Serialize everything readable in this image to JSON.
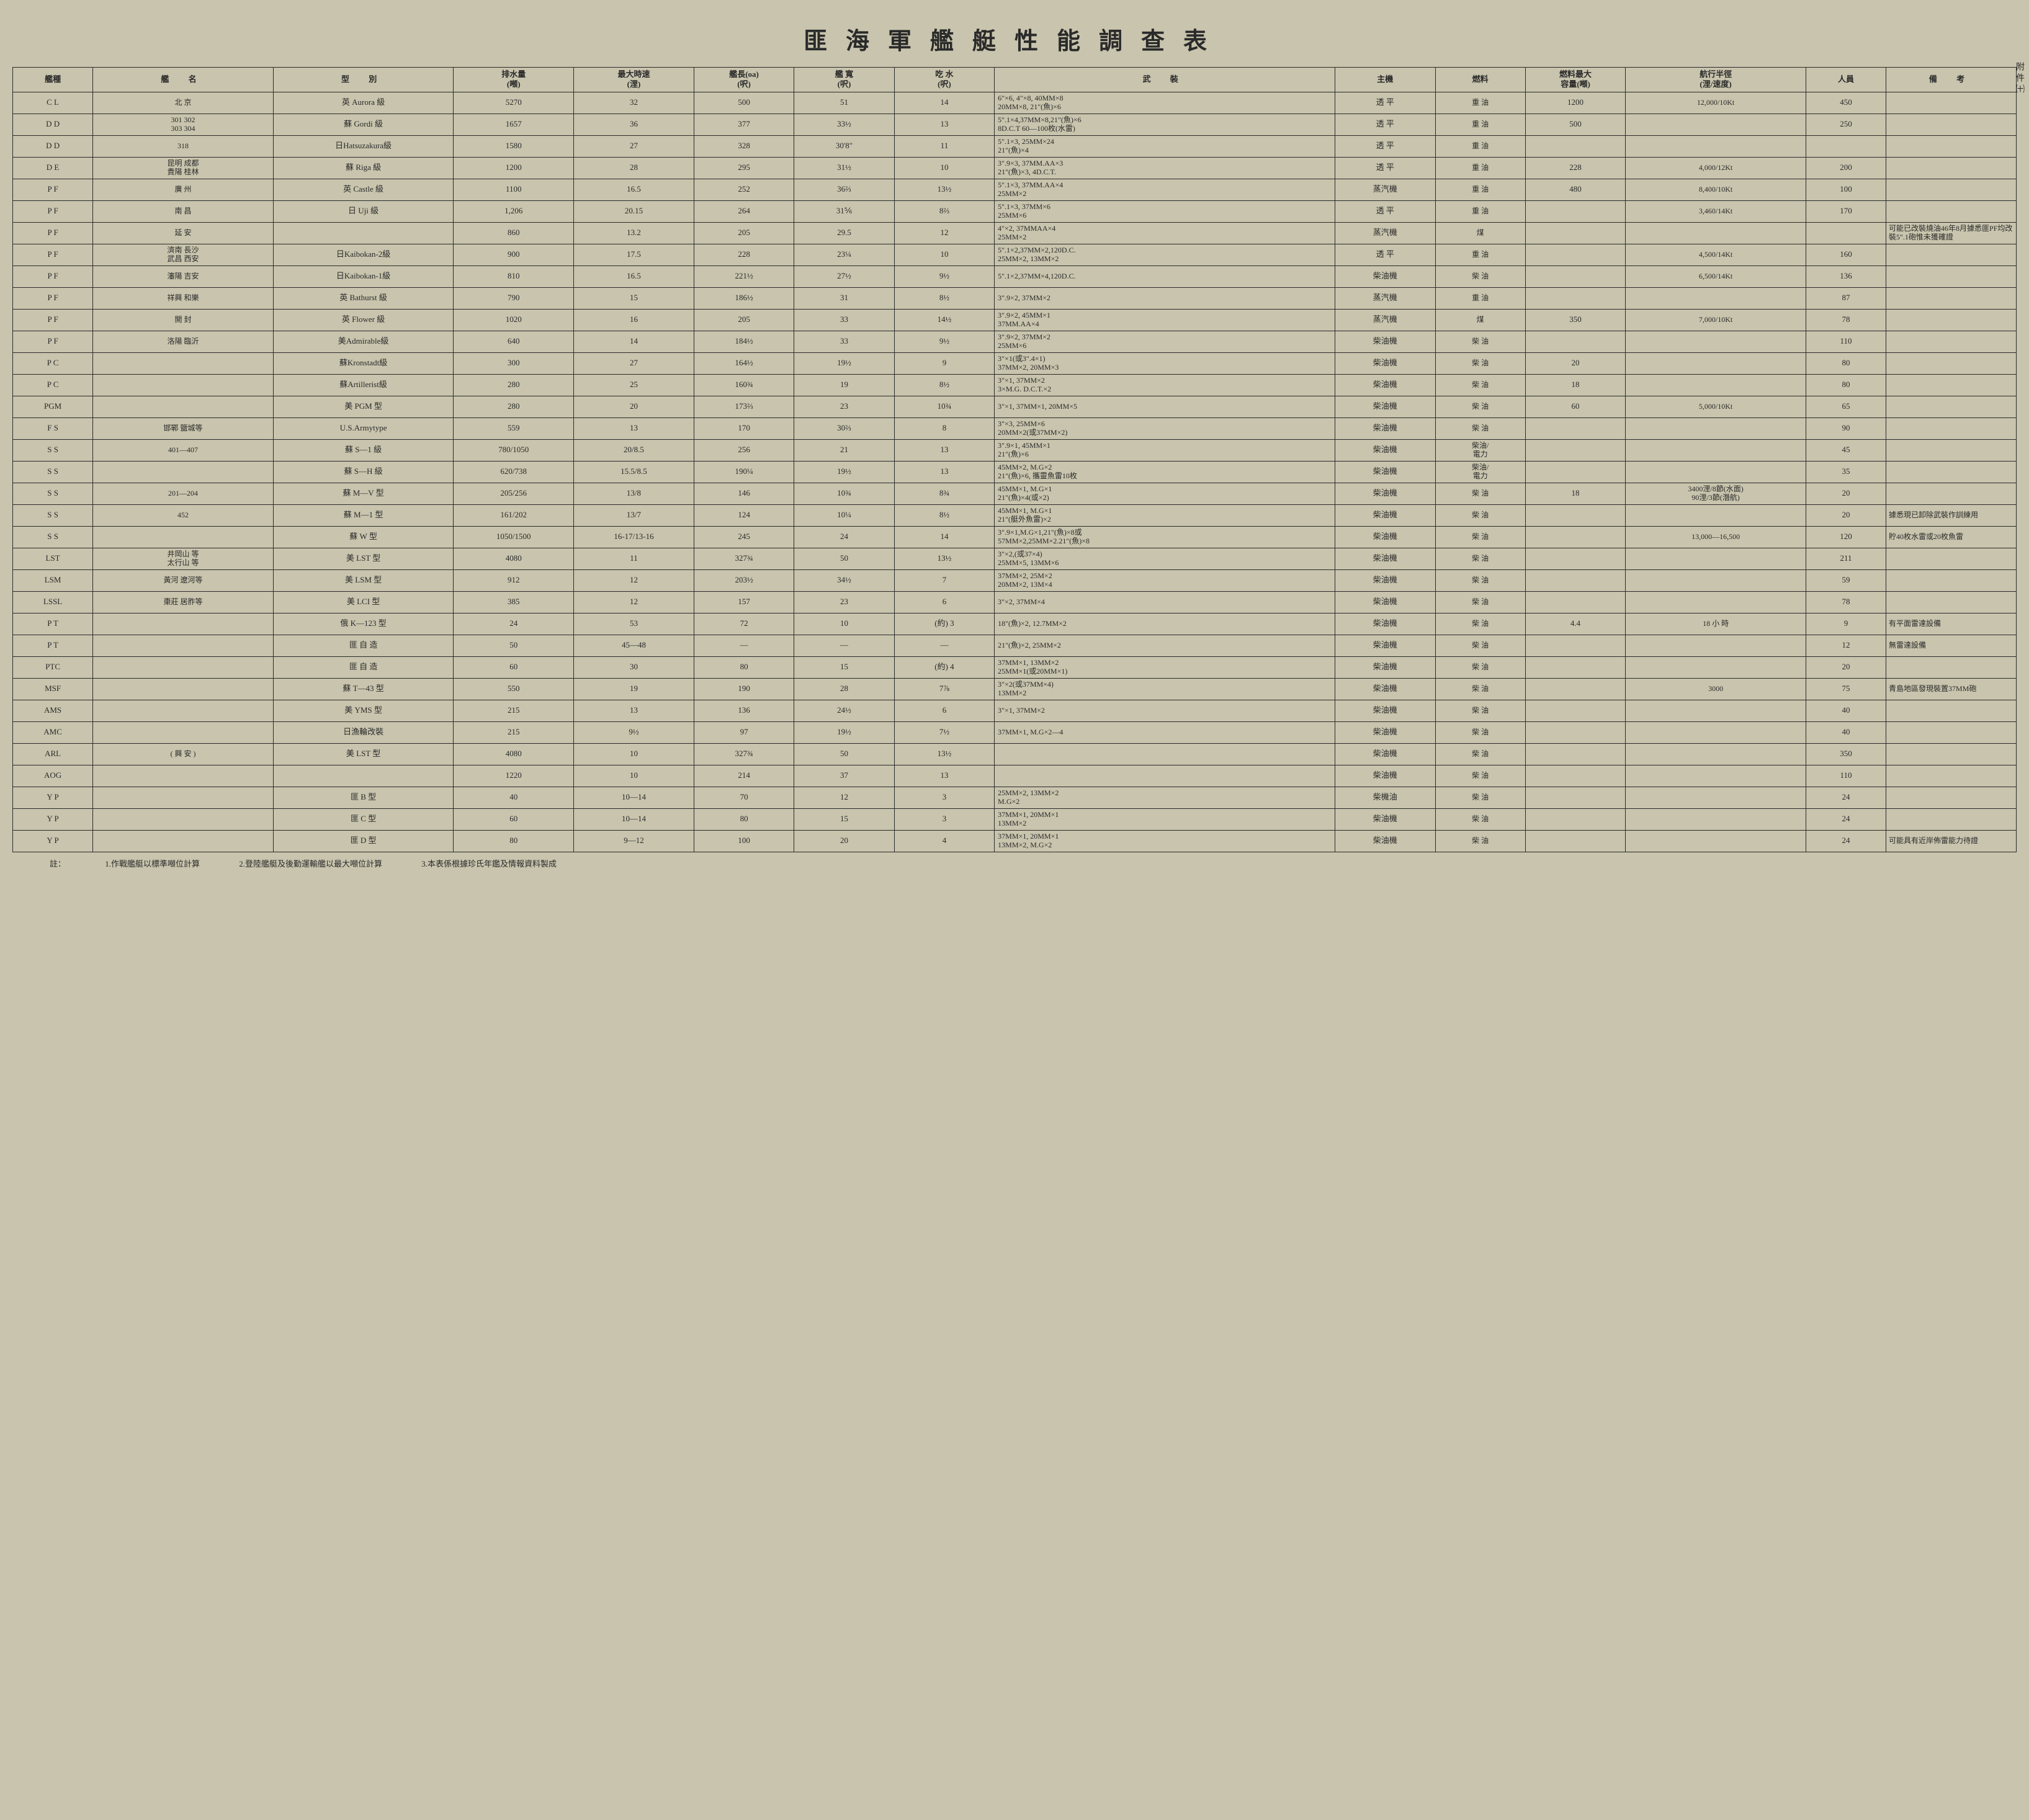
{
  "title": "匪海軍艦艇性能調查表",
  "side_label": "附件㈩",
  "headers": {
    "type": "艦種",
    "name": "艦 名",
    "class": "型 別",
    "disp": "排水量\n(噸)",
    "speed": "最大時速\n(浬)",
    "loa": "艦長(oa)\n(呎)",
    "beam": "艦 寬\n(呎)",
    "draft": "吃 水\n(呎)",
    "arm": "武 裝",
    "engine": "主機",
    "fuel": "燃料",
    "cap": "燃料最大\n容量(噸)",
    "range": "航行半徑\n(浬/速度)",
    "crew": "人員",
    "note": "備 考"
  },
  "rows": [
    {
      "type": "C L",
      "name": "北 京",
      "class": "英 Aurora 級",
      "disp": "5270",
      "speed": "32",
      "loa": "500",
      "beam": "51",
      "draft": "14",
      "arm": "6\"×6, 4\"×8, 40MM×8\n20MM×8, 21\"(魚)×6",
      "engine": "透 平",
      "fuel": "重 油",
      "cap": "1200",
      "range": "12,000/10Kt",
      "crew": "450",
      "note": ""
    },
    {
      "type": "D D",
      "name": "301 302\n303 304",
      "class": "蘇 Gordi 級",
      "disp": "1657",
      "speed": "36",
      "loa": "377",
      "beam": "33½",
      "draft": "13",
      "arm": "5\".1×4,37MM×8,21\"(魚)×6\n8D.C.T 60—100枚(水雷)",
      "engine": "透 平",
      "fuel": "重 油",
      "cap": "500",
      "range": "",
      "crew": "250",
      "note": ""
    },
    {
      "type": "D D",
      "name": "318",
      "class": "日Hatsuzakura級",
      "disp": "1580",
      "speed": "27",
      "loa": "328",
      "beam": "30'8\"",
      "draft": "11",
      "arm": "5\".1×3, 25MM×24\n21\"(魚)×4",
      "engine": "透 平",
      "fuel": "重 油",
      "cap": "",
      "range": "",
      "crew": "",
      "note": ""
    },
    {
      "type": "D E",
      "name": "昆明 成都\n貴陽 桂林",
      "class": "蘇 Riga 級",
      "disp": "1200",
      "speed": "28",
      "loa": "295",
      "beam": "31½",
      "draft": "10",
      "arm": "3\".9×3, 37MM.AA×3\n21\"(魚)×3, 4D.C.T.",
      "engine": "透 平",
      "fuel": "重 油",
      "cap": "228",
      "range": "4,000/12Kt",
      "crew": "200",
      "note": ""
    },
    {
      "type": "P F",
      "name": "廣 州",
      "class": "英 Castle 級",
      "disp": "1100",
      "speed": "16.5",
      "loa": "252",
      "beam": "36⅔",
      "draft": "13½",
      "arm": "5\".1×3, 37MM.AA×4\n25MM×2",
      "engine": "蒸汽機",
      "fuel": "重 油",
      "cap": "480",
      "range": "8,400/10Kt",
      "crew": "100",
      "note": ""
    },
    {
      "type": "P F",
      "name": "南 昌",
      "class": "日 Uji 級",
      "disp": "1,206",
      "speed": "20.15",
      "loa": "264",
      "beam": "31⅚",
      "draft": "8⅔",
      "arm": "5\".1×3, 37MM×6\n25MM×6",
      "engine": "透 平",
      "fuel": "重 油",
      "cap": "",
      "range": "3,460/14Kt",
      "crew": "170",
      "note": ""
    },
    {
      "type": "P F",
      "name": "延 安",
      "class": "",
      "disp": "860",
      "speed": "13.2",
      "loa": "205",
      "beam": "29.5",
      "draft": "12",
      "arm": "4\"×2, 37MMAA×4\n25MM×2",
      "engine": "蒸汽機",
      "fuel": "煤",
      "cap": "",
      "range": "",
      "crew": "",
      "note": "可能已改裝燒油46年8月據悉匪PF均改裝5\".1砲惟未獲確證"
    },
    {
      "type": "P F",
      "name": "濟南 長沙\n武昌 西安",
      "class": "日Kaibokan-2級",
      "disp": "900",
      "speed": "17.5",
      "loa": "228",
      "beam": "23¼",
      "draft": "10",
      "arm": "5\".1×2,37MM×2,120D.C.\n25MM×2, 13MM×2",
      "engine": "透 平",
      "fuel": "重 油",
      "cap": "",
      "range": "4,500/14Kt",
      "crew": "160",
      "note": ""
    },
    {
      "type": "P F",
      "name": "瀋陽 吉安",
      "class": "日Kaibokan-1級",
      "disp": "810",
      "speed": "16.5",
      "loa": "221½",
      "beam": "27½",
      "draft": "9½",
      "arm": "5\".1×2,37MM×4,120D.C.",
      "engine": "柴油機",
      "fuel": "柴 油",
      "cap": "",
      "range": "6,500/14Kt",
      "crew": "136",
      "note": ""
    },
    {
      "type": "P F",
      "name": "祥興 和樂",
      "class": "英 Bathurst 級",
      "disp": "790",
      "speed": "15",
      "loa": "186½",
      "beam": "31",
      "draft": "8½",
      "arm": "3\".9×2, 37MM×2",
      "engine": "蒸汽機",
      "fuel": "重 油",
      "cap": "",
      "range": "",
      "crew": "87",
      "note": ""
    },
    {
      "type": "P F",
      "name": "開 封",
      "class": "英 Flower 級",
      "disp": "1020",
      "speed": "16",
      "loa": "205",
      "beam": "33",
      "draft": "14½",
      "arm": "3\".9×2, 45MM×1\n37MM.AA×4",
      "engine": "蒸汽機",
      "fuel": "煤",
      "cap": "350",
      "range": "7,000/10Kt",
      "crew": "78",
      "note": ""
    },
    {
      "type": "P F",
      "name": "洛陽 臨沂",
      "class": "美Admirable級",
      "disp": "640",
      "speed": "14",
      "loa": "184½",
      "beam": "33",
      "draft": "9½",
      "arm": "3\".9×2, 37MM×2\n25MM×6",
      "engine": "柴油機",
      "fuel": "柴 油",
      "cap": "",
      "range": "",
      "crew": "110",
      "note": ""
    },
    {
      "type": "P C",
      "name": "",
      "class": "蘇Kronstadt級",
      "disp": "300",
      "speed": "27",
      "loa": "164½",
      "beam": "19½",
      "draft": "9",
      "arm": "3\"×1(或3\".4×1)\n37MM×2, 20MM×3",
      "engine": "柴油機",
      "fuel": "柴 油",
      "cap": "20",
      "range": "",
      "crew": "80",
      "note": ""
    },
    {
      "type": "P C",
      "name": "",
      "class": "蘇Artillerist級",
      "disp": "280",
      "speed": "25",
      "loa": "160¾",
      "beam": "19",
      "draft": "8½",
      "arm": "3\"×1, 37MM×2\n3×M.G. D.C.T.×2",
      "engine": "柴油機",
      "fuel": "柴 油",
      "cap": "18",
      "range": "",
      "crew": "80",
      "note": ""
    },
    {
      "type": "PGM",
      "name": "",
      "class": "美 PGM 型",
      "disp": "280",
      "speed": "20",
      "loa": "173⅔",
      "beam": "23",
      "draft": "10¾",
      "arm": "3\"×1, 37MM×1, 20MM×5",
      "engine": "柴油機",
      "fuel": "柴 油",
      "cap": "60",
      "range": "5,000/10Kt",
      "crew": "65",
      "note": ""
    },
    {
      "type": "F S",
      "name": "邯鄲 鹽城等",
      "class": "U.S.Armytype",
      "disp": "559",
      "speed": "13",
      "loa": "170",
      "beam": "30⅔",
      "draft": "8",
      "arm": "3\"×3, 25MM×6\n20MM×2(或37MM×2)",
      "engine": "柴油機",
      "fuel": "柴 油",
      "cap": "",
      "range": "",
      "crew": "90",
      "note": ""
    },
    {
      "type": "S S",
      "name": "401—407",
      "class": "蘇 S—1 級",
      "disp": "780/1050",
      "speed": "20/8.5",
      "loa": "256",
      "beam": "21",
      "draft": "13",
      "arm": "3\".9×1, 45MM×1\n21\"(魚)×6",
      "engine": "柴油機",
      "fuel": "柴油/\n電力",
      "cap": "",
      "range": "",
      "crew": "45",
      "note": ""
    },
    {
      "type": "S S",
      "name": "",
      "class": "蘇 S—H 級",
      "disp": "620/738",
      "speed": "15.5/8.5",
      "loa": "190¼",
      "beam": "19½",
      "draft": "13",
      "arm": "45MM×2, M.G×2\n21\"(魚)×6, 攜靈魚雷10枚",
      "engine": "柴油機",
      "fuel": "柴油/\n電力",
      "cap": "",
      "range": "",
      "crew": "35",
      "note": ""
    },
    {
      "type": "S S",
      "name": "201—204",
      "class": "蘇 M—V 型",
      "disp": "205/256",
      "speed": "13/8",
      "loa": "146",
      "beam": "10¾",
      "draft": "8¾",
      "arm": "45MM×1, M.G×1\n21\"(魚)×4(或×2)",
      "engine": "柴油機",
      "fuel": "柴 油",
      "cap": "18",
      "range": "3400浬/8節(水面)\n90浬/3節(潛航)",
      "crew": "20",
      "note": ""
    },
    {
      "type": "S S",
      "name": "452",
      "class": "蘇 M—1 型",
      "disp": "161/202",
      "speed": "13/7",
      "loa": "124",
      "beam": "10¼",
      "draft": "8½",
      "arm": "45MM×1, M.G×1\n21\"(艇外魚雷)×2",
      "engine": "柴油機",
      "fuel": "柴 油",
      "cap": "",
      "range": "",
      "crew": "20",
      "note": "據悉現已卸除武裝作訓練用"
    },
    {
      "type": "S S",
      "name": "",
      "class": "蘇 W 型",
      "disp": "1050/1500",
      "speed": "16-17/13-16",
      "loa": "245",
      "beam": "24",
      "draft": "14",
      "arm": "3\".9×1,M.G×1,21\"(魚)×8或\n57MM×2,25MM×2.21\"(魚)×8",
      "engine": "柴油機",
      "fuel": "柴 油",
      "cap": "",
      "range": "13,000—16,500",
      "crew": "120",
      "note": "貯40枚水雷或20枚魚雷"
    },
    {
      "type": "LST",
      "name": "井岡山 等\n太行山 等",
      "class": "美 LST 型",
      "disp": "4080",
      "speed": "11",
      "loa": "327¾",
      "beam": "50",
      "draft": "13½",
      "arm": "3\"×2,(或37×4)\n25MM×5, 13MM×6",
      "engine": "柴油機",
      "fuel": "柴 油",
      "cap": "",
      "range": "",
      "crew": "211",
      "note": ""
    },
    {
      "type": "LSM",
      "name": "黃河 遼河等",
      "class": "美 LSM 型",
      "disp": "912",
      "speed": "12",
      "loa": "203½",
      "beam": "34½",
      "draft": "7",
      "arm": "37MM×2, 25M×2\n20MM×2, 13M×4",
      "engine": "柴油機",
      "fuel": "柴 油",
      "cap": "",
      "range": "",
      "crew": "59",
      "note": ""
    },
    {
      "type": "LSSL",
      "name": "棗莊 居胙等",
      "class": "美 LCI 型",
      "disp": "385",
      "speed": "12",
      "loa": "157",
      "beam": "23",
      "draft": "6",
      "arm": "3\"×2, 37MM×4",
      "engine": "柴油機",
      "fuel": "柴 油",
      "cap": "",
      "range": "",
      "crew": "78",
      "note": ""
    },
    {
      "type": "P T",
      "name": "",
      "class": "俄 K—123 型",
      "disp": "24",
      "speed": "53",
      "loa": "72",
      "beam": "10",
      "draft": "(約) 3",
      "arm": "18\"(魚)×2, 12.7MM×2",
      "engine": "柴油機",
      "fuel": "柴 油",
      "cap": "4.4",
      "range": "18 小 時",
      "crew": "9",
      "note": "有平面雷達設備"
    },
    {
      "type": "P T",
      "name": "",
      "class": "匪 自 造",
      "disp": "50",
      "speed": "45—48",
      "loa": "—",
      "beam": "—",
      "draft": "—",
      "arm": "21\"(魚)×2, 25MM×2",
      "engine": "柴油機",
      "fuel": "柴 油",
      "cap": "",
      "range": "",
      "crew": "12",
      "note": "無雷達設備"
    },
    {
      "type": "PTC",
      "name": "",
      "class": "匪 自 造",
      "disp": "60",
      "speed": "30",
      "loa": "80",
      "beam": "15",
      "draft": "(約) 4",
      "arm": "37MM×1, 13MM×2\n25MM×1(或20MM×1)",
      "engine": "柴油機",
      "fuel": "柴 油",
      "cap": "",
      "range": "",
      "crew": "20",
      "note": ""
    },
    {
      "type": "MSF",
      "name": "",
      "class": "蘇 T—43 型",
      "disp": "550",
      "speed": "19",
      "loa": "190",
      "beam": "28",
      "draft": "7⅞",
      "arm": "3\"×2(或37MM×4)\n13MM×2",
      "engine": "柴油機",
      "fuel": "柴 油",
      "cap": "",
      "range": "3000",
      "crew": "75",
      "note": "青島地區發現裝置37MM砲"
    },
    {
      "type": "AMS",
      "name": "",
      "class": "美 YMS 型",
      "disp": "215",
      "speed": "13",
      "loa": "136",
      "beam": "24½",
      "draft": "6",
      "arm": "3\"×1, 37MM×2",
      "engine": "柴油機",
      "fuel": "柴 油",
      "cap": "",
      "range": "",
      "crew": "40",
      "note": ""
    },
    {
      "type": "AMC",
      "name": "",
      "class": "日漁輪改裝",
      "disp": "215",
      "speed": "9½",
      "loa": "97",
      "beam": "19½",
      "draft": "7½",
      "arm": "37MM×1, M.G×2—4",
      "engine": "柴油機",
      "fuel": "柴 油",
      "cap": "",
      "range": "",
      "crew": "40",
      "note": ""
    },
    {
      "type": "ARL",
      "name": "( 興 安 )",
      "class": "美 LST 型",
      "disp": "4080",
      "speed": "10",
      "loa": "327¾",
      "beam": "50",
      "draft": "13½",
      "arm": "",
      "engine": "柴油機",
      "fuel": "柴 油",
      "cap": "",
      "range": "",
      "crew": "350",
      "note": ""
    },
    {
      "type": "AOG",
      "name": "",
      "class": "",
      "disp": "1220",
      "speed": "10",
      "loa": "214",
      "beam": "37",
      "draft": "13",
      "arm": "",
      "engine": "柴油機",
      "fuel": "柴 油",
      "cap": "",
      "range": "",
      "crew": "110",
      "note": ""
    },
    {
      "type": "Y P",
      "name": "",
      "class": "匪 B 型",
      "disp": "40",
      "speed": "10—14",
      "loa": "70",
      "beam": "12",
      "draft": "3",
      "arm": "25MM×2, 13MM×2\nM.G×2",
      "engine": "柴機油",
      "fuel": "柴 油",
      "cap": "",
      "range": "",
      "crew": "24",
      "note": ""
    },
    {
      "type": "Y P",
      "name": "",
      "class": "匪 C 型",
      "disp": "60",
      "speed": "10—14",
      "loa": "80",
      "beam": "15",
      "draft": "3",
      "arm": "37MM×1, 20MM×1\n13MM×2",
      "engine": "柴油機",
      "fuel": "柴 油",
      "cap": "",
      "range": "",
      "crew": "24",
      "note": ""
    },
    {
      "type": "Y P",
      "name": "",
      "class": "匪 D 型",
      "disp": "80",
      "speed": "9—12",
      "loa": "100",
      "beam": "20",
      "draft": "4",
      "arm": "37MM×1, 20MM×1\n13MM×2, M.G×2",
      "engine": "柴油機",
      "fuel": "柴 油",
      "cap": "",
      "range": "",
      "crew": "24",
      "note": "可能具有近岸佈雷能力待證"
    }
  ],
  "footnotes": {
    "lead": "註：",
    "n1": "1.作戰艦艇以標準噸位計算",
    "n2": "2.登陸艦艇及後勤運輸艦以最大噸位計算",
    "n3": "3.本表係根據珍氏年鑑及情報資料製成"
  }
}
